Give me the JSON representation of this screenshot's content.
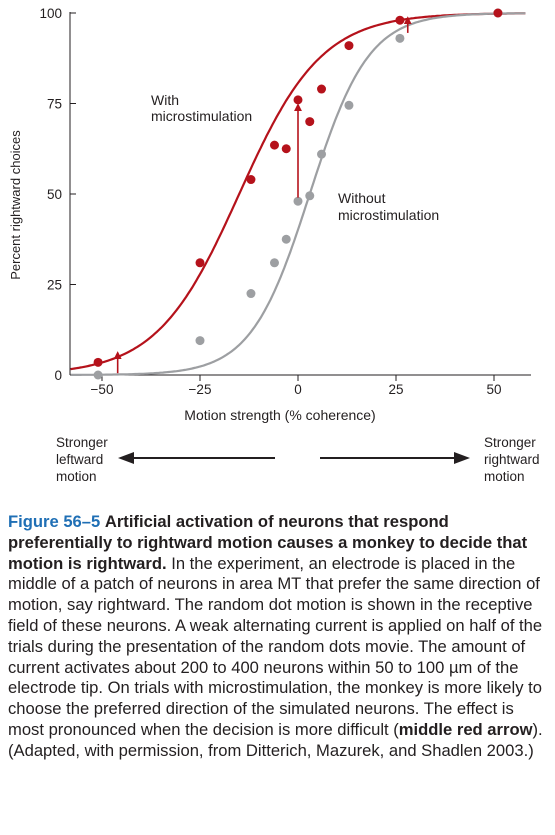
{
  "chart_data": {
    "type": "scatter",
    "xlabel": "Motion strength (% coherence)",
    "ylabel": "Percent rightward choices",
    "xlim": [
      -60,
      60
    ],
    "ylim": [
      0,
      100
    ],
    "xticks": [
      -50,
      -25,
      0,
      25,
      50
    ],
    "yticks": [
      0,
      25,
      50,
      75,
      100
    ],
    "grid": false,
    "series": [
      {
        "name": "With microstimulation",
        "color": "#b5121b",
        "points": [
          {
            "x": -51,
            "y": 3.5
          },
          {
            "x": -25,
            "y": 31
          },
          {
            "x": -12,
            "y": 54
          },
          {
            "x": -6,
            "y": 63.5
          },
          {
            "x": -3,
            "y": 62.5
          },
          {
            "x": 0,
            "y": 76
          },
          {
            "x": 3,
            "y": 70
          },
          {
            "x": 6,
            "y": 79
          },
          {
            "x": 13,
            "y": 91
          },
          {
            "x": 26,
            "y": 98
          },
          {
            "x": 51,
            "y": 100
          }
        ],
        "curve_midpoint": -15,
        "curve_slope": 10.5
      },
      {
        "name": "Without microstimulation",
        "color": "#9d9fa2",
        "points": [
          {
            "x": -51,
            "y": 0
          },
          {
            "x": -25,
            "y": 9.5
          },
          {
            "x": -12,
            "y": 22.5
          },
          {
            "x": -6,
            "y": 31
          },
          {
            "x": -3,
            "y": 37.5
          },
          {
            "x": 0,
            "y": 48
          },
          {
            "x": 3,
            "y": 49.5
          },
          {
            "x": 6,
            "y": 61
          },
          {
            "x": 13,
            "y": 74.5
          },
          {
            "x": 26,
            "y": 93
          },
          {
            "x": 51,
            "y": 100
          }
        ],
        "curve_midpoint": 3,
        "curve_slope": 7.5
      }
    ],
    "arrows": [
      {
        "x": 0,
        "from": 49,
        "to": 74
      },
      {
        "x": -46,
        "from": 0.5,
        "to": 5.5
      },
      {
        "x": 28,
        "from": 94.5,
        "to": 98
      }
    ],
    "annotations": {
      "with_line1": "With",
      "with_line2": "microstimulation",
      "without_line1": "Without",
      "without_line2": "microstimulation"
    },
    "direction": {
      "left_line1": "Stronger",
      "left_line2": "leftward",
      "left_line3": "motion",
      "right_line1": "Stronger",
      "right_line2": "rightward",
      "right_line3": "motion"
    }
  },
  "caption": {
    "label": "Figure 56–5",
    "lead": "Artificial activation of neurons that respond preferentially to rightward motion causes a monkey to decide that motion is rightward.",
    "body1": "In the experiment, an electrode is placed in the middle of a patch of neurons in area MT that prefer the same direction of motion, say rightward. The random dot motion is shown in the receptive field of these neurons. A weak alternating current is applied on half of the trials during the presentation of the random dots movie. The amount of current activates about 200 to 400 neurons within 50 to 100 µm of the electrode tip. On trials with microstimulation, the monkey is more likely to choose the preferred direction of the simulated neurons. The effect is most pronounced when the decision is more difficult (",
    "emphasis": "middle red arrow",
    "body2": "). (Adapted, with permission, from Ditterich, Mazurek, and Shadlen 2003.)"
  }
}
